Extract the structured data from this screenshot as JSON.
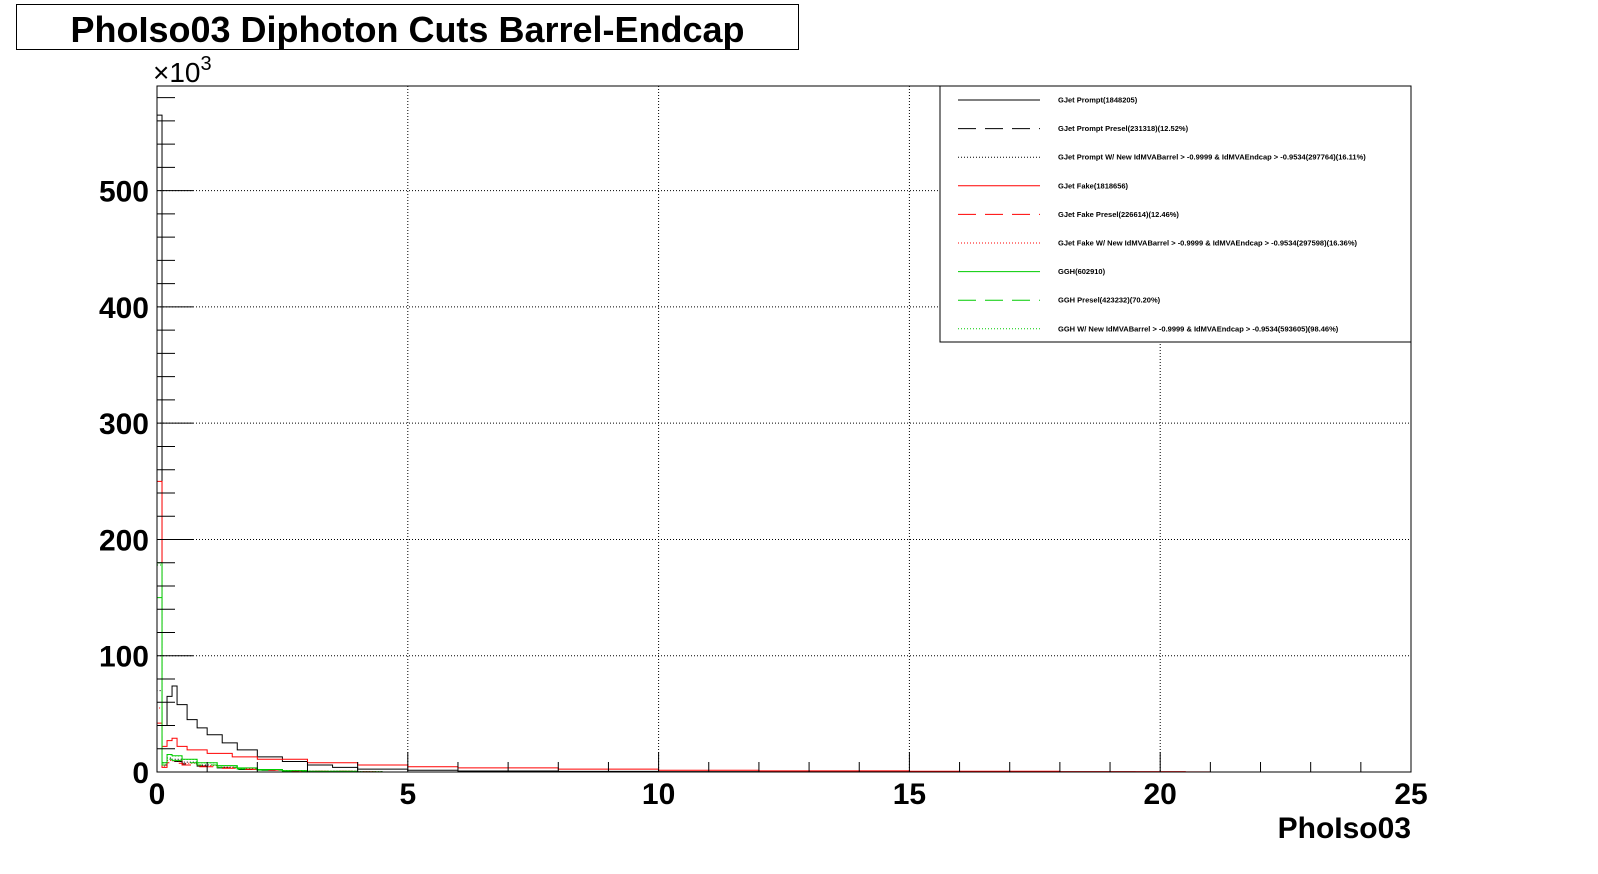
{
  "title": "PhoIso03 Diphoton Cuts Barrel-Endcap",
  "chart_data": {
    "type": "line",
    "title": "PhoIso03 Diphoton Cuts Barrel-Endcap",
    "xlabel": "PhoIso03",
    "ylabel": "",
    "xlim": [
      0,
      25
    ],
    "ylim": [
      0,
      590000
    ],
    "y_exponent_label": "×10",
    "y_exponent_power": "3",
    "x_ticks": [
      "0",
      "5",
      "10",
      "15",
      "20",
      "25"
    ],
    "x_tick_values": [
      0,
      5,
      10,
      15,
      20,
      25
    ],
    "y_ticks": [
      "0",
      "100",
      "200",
      "300",
      "400",
      "500"
    ],
    "y_tick_values": [
      0,
      100000,
      200000,
      300000,
      400000,
      500000
    ],
    "grid": true,
    "legend_position": "top-right",
    "series": [
      {
        "name": "GJet Prompt(1848205)",
        "color": "#000000",
        "style": "solid",
        "x": [
          0,
          0.1,
          0.2,
          0.3,
          0.4,
          0.6,
          0.8,
          1.0,
          1.3,
          1.6,
          2.0,
          2.5,
          3.0,
          3.5,
          4.0,
          5.0,
          6.0,
          8.0,
          10.0,
          15.0,
          19.5
        ],
        "y": [
          565000,
          40000,
          65000,
          74000,
          58000,
          45000,
          38000,
          32000,
          25000,
          19000,
          13000,
          9000,
          6000,
          4000,
          2500,
          1500,
          900,
          500,
          300,
          120,
          50
        ]
      },
      {
        "name": "GJet Prompt Presel(231318)(12.52%)",
        "color": "#000000",
        "style": "dashed",
        "x": [
          0,
          0.1,
          0.2,
          0.3,
          0.5,
          0.8,
          1.2,
          1.6,
          2.0,
          2.5,
          3.0,
          4.0
        ],
        "y": [
          55000,
          6000,
          10000,
          9000,
          7000,
          5000,
          3500,
          2200,
          1500,
          900,
          500,
          150
        ]
      },
      {
        "name": "GJet Prompt W/ New IdMVABarrel > -0.9999 & IdMVAEndcap > -0.9534(297764)(16.11%)",
        "color": "#000000",
        "style": "dotted",
        "x": [
          0,
          0.1,
          0.2,
          0.3,
          0.5,
          0.8,
          1.2,
          1.6,
          2.0,
          2.5,
          3.0,
          4.0
        ],
        "y": [
          70000,
          8000,
          12000,
          11000,
          8500,
          6000,
          4200,
          2700,
          1800,
          1000,
          600,
          200
        ]
      },
      {
        "name": "GJet Fake(1818656)",
        "color": "#ff0000",
        "style": "solid",
        "x": [
          0,
          0.1,
          0.2,
          0.3,
          0.4,
          0.6,
          1.0,
          1.5,
          2.0,
          3.0,
          4.0,
          5.0,
          6.0,
          8.0,
          10.0,
          12.0,
          15.0,
          18.0,
          20.5
        ],
        "y": [
          250000,
          22000,
          27000,
          29000,
          22000,
          19000,
          16000,
          13000,
          11000,
          8000,
          6000,
          4500,
          3500,
          2500,
          1500,
          1000,
          600,
          300,
          120
        ]
      },
      {
        "name": "GJet Fake Presel(226614)(12.46%)",
        "color": "#ff0000",
        "style": "dashed",
        "x": [
          0,
          0.1,
          0.2,
          0.3,
          0.5,
          0.8,
          1.2,
          1.6,
          2.0,
          2.5,
          3.0,
          4.0
        ],
        "y": [
          42000,
          4000,
          8000,
          7500,
          6000,
          4500,
          3200,
          2300,
          1600,
          1000,
          600,
          200
        ]
      },
      {
        "name": "GJet Fake W/ New IdMVABarrel > -0.9999 & IdMVAEndcap > -0.9534(297598)(16.36%)",
        "color": "#ff0000",
        "style": "dotted",
        "x": [
          0,
          0.1,
          0.2,
          0.3,
          0.5,
          0.8,
          1.2,
          1.6,
          2.0,
          2.5,
          3.0,
          4.0
        ],
        "y": [
          55000,
          5000,
          10000,
          9500,
          7500,
          5500,
          4000,
          2800,
          1900,
          1200,
          700,
          250
        ]
      },
      {
        "name": "GGH(602910)",
        "color": "#00cc00",
        "style": "solid",
        "x": [
          0,
          0.1,
          0.2,
          0.3,
          0.5,
          0.8,
          1.2,
          1.6,
          2.0,
          2.5,
          3.0,
          4.0
        ],
        "y": [
          180000,
          8000,
          15000,
          14000,
          11000,
          8000,
          5500,
          3500,
          2200,
          1200,
          600,
          150
        ]
      },
      {
        "name": "GGH Presel(423232)(70.20%)",
        "color": "#00cc00",
        "style": "dashed",
        "x": [
          0,
          0.1,
          0.2,
          0.3,
          0.5,
          0.8,
          1.2,
          1.6,
          2.0,
          2.5,
          3.0,
          4.0
        ],
        "y": [
          150000,
          6000,
          11000,
          10000,
          8000,
          6000,
          4000,
          2600,
          1600,
          900,
          450,
          120
        ]
      },
      {
        "name": "GGH W/ New IdMVABarrel > -0.9999 & IdMVAEndcap > -0.9534(593605)(98.46%)",
        "color": "#00cc00",
        "style": "dotted",
        "x": [
          0,
          0.1,
          0.2,
          0.3,
          0.5,
          0.8,
          1.2,
          1.6,
          2.0,
          2.5,
          3.0,
          4.0
        ],
        "y": [
          178000,
          7900,
          14800,
          13800,
          10800,
          7900,
          5400,
          3450,
          2150,
          1180,
          590,
          145
        ]
      }
    ]
  }
}
